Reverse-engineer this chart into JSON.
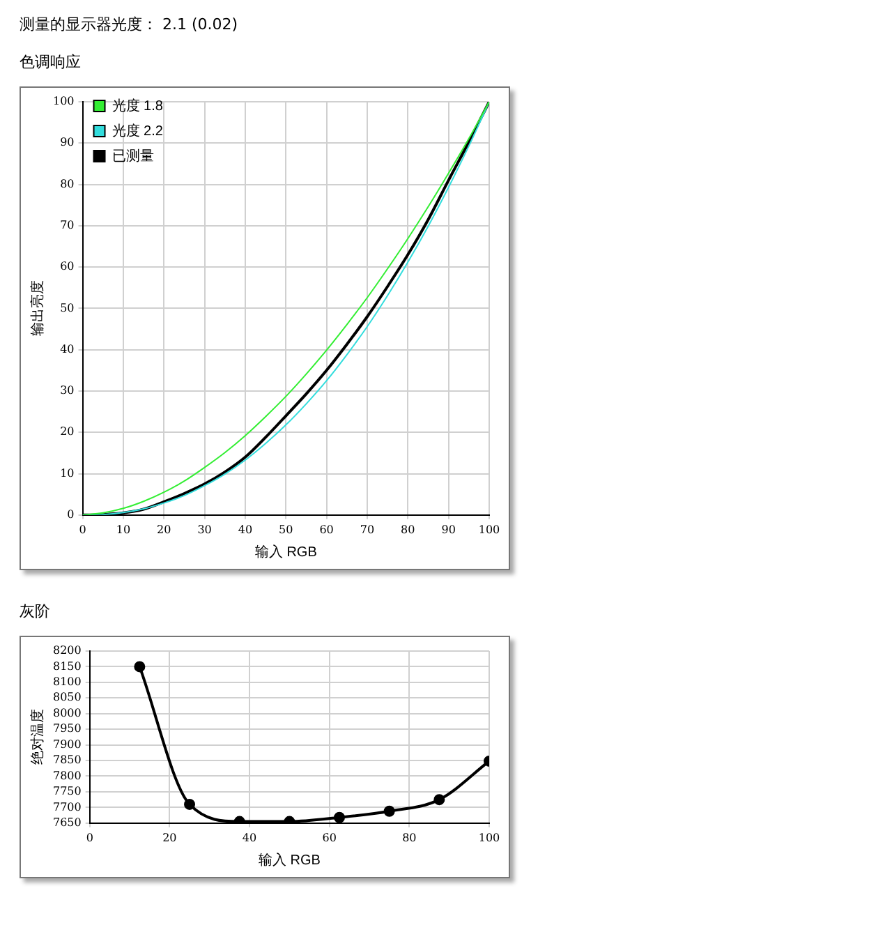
{
  "chart_data": [
    {
      "type": "line",
      "title": "色调响应",
      "annotations": [
        "测量的显示器光度： 2.1 (0.02)"
      ],
      "xlabel": "输入 RGB",
      "ylabel": "输出亮度",
      "x": [
        0,
        5,
        10,
        15,
        20,
        25,
        30,
        35,
        40,
        45,
        50,
        55,
        60,
        65,
        70,
        75,
        80,
        85,
        90,
        95,
        100
      ],
      "series": [
        {
          "name": "光度 1.8",
          "color": "#33ee33",
          "values": [
            0,
            0.5,
            1.6,
            3.3,
            5.5,
            8.2,
            11.5,
            15.1,
            19.2,
            23.8,
            28.7,
            34.1,
            39.9,
            46.1,
            52.6,
            59.6,
            66.9,
            74.6,
            82.7,
            91.1,
            100
          ]
        },
        {
          "name": "光度 2.2",
          "color": "#33dddd",
          "values": [
            0,
            0.1,
            0.6,
            1.5,
            2.9,
            4.7,
            7.1,
            9.9,
            13.3,
            17.3,
            21.8,
            26.9,
            32.5,
            38.8,
            45.6,
            53.1,
            61.2,
            69.9,
            79.3,
            89.3,
            100
          ]
        },
        {
          "name": "已测量",
          "color": "#000000",
          "values": [
            0,
            0.1,
            0.5,
            1.4,
            3.2,
            5.2,
            7.5,
            10.4,
            14,
            18.8,
            24,
            29.3,
            35,
            41.3,
            48,
            55.3,
            63,
            71.5,
            81,
            90.3,
            100
          ]
        }
      ],
      "xlim": [
        0,
        100
      ],
      "ylim": [
        0,
        100
      ],
      "xticks": [
        0,
        10,
        20,
        30,
        40,
        50,
        60,
        70,
        80,
        90,
        100
      ],
      "yticks": [
        0,
        10,
        20,
        30,
        40,
        50,
        60,
        70,
        80,
        90,
        100
      ],
      "grid": true,
      "legend": "top left",
      "marker": "none"
    },
    {
      "type": "line",
      "title": "灰阶",
      "xlabel": "输入 RGB",
      "ylabel": "绝对温度",
      "x": [
        12.5,
        25,
        37.5,
        50,
        62.5,
        75,
        87.5,
        100
      ],
      "series": [
        {
          "color": "#000000",
          "values": [
            8150,
            7710,
            7655,
            7655,
            7668,
            7688,
            7725,
            7848
          ]
        }
      ],
      "xlim": [
        0,
        100
      ],
      "ylim": [
        7650,
        8200
      ],
      "xticks": [
        0,
        20,
        40,
        60,
        80,
        100
      ],
      "yticks": [
        7650,
        7700,
        7750,
        7800,
        7850,
        7900,
        7950,
        8000,
        8050,
        8100,
        8150,
        8200
      ],
      "grid": true,
      "legend": false,
      "marker": "circle"
    }
  ]
}
